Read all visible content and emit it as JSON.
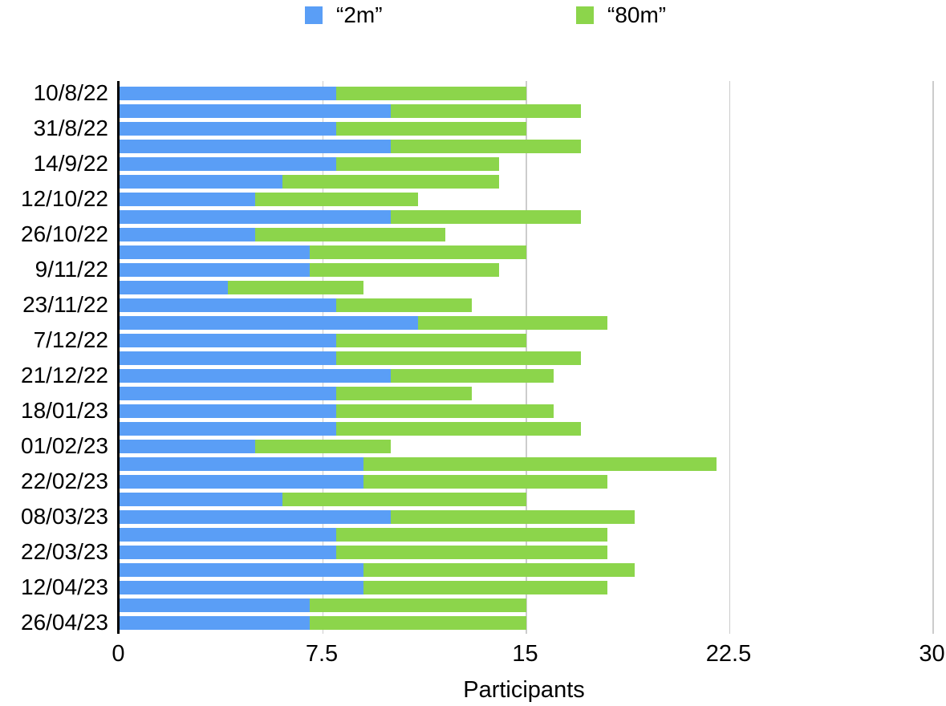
{
  "legend": {
    "items": [
      {
        "label": "“2m”",
        "color": "#5A9EF6"
      },
      {
        "label": "“80m”",
        "color": "#8CD54B"
      }
    ]
  },
  "chart_data": {
    "type": "bar",
    "orientation": "horizontal",
    "stacked": true,
    "title": "",
    "xlabel": "Participants",
    "ylabel": "",
    "xlim": [
      0,
      30
    ],
    "xticks": [
      {
        "label": "0",
        "value": 0
      },
      {
        "label": "7.5",
        "value": 7.5
      },
      {
        "label": "15",
        "value": 15
      },
      {
        "label": "22.5",
        "value": 22.5
      },
      {
        "label": "30",
        "value": 30
      }
    ],
    "grid": true,
    "legend_position": "top",
    "categories": [
      "10/8/22",
      "",
      "31/8/22",
      "",
      "14/9/22",
      "",
      "12/10/22",
      "",
      "26/10/22",
      "",
      "9/11/22",
      "",
      "23/11/22",
      "",
      "7/12/22",
      "",
      "21/12/22",
      "",
      "18/01/23",
      "",
      "01/02/23",
      "",
      "22/02/23",
      "",
      "08/03/23",
      "",
      "22/03/23",
      "",
      "12/04/23",
      "",
      "26/04/23"
    ],
    "series": [
      {
        "name": "“2m”",
        "color": "#5A9EF6",
        "values": [
          8,
          10,
          8,
          10,
          8,
          6,
          5,
          10,
          5,
          7,
          7,
          4,
          8,
          11,
          8,
          8,
          10,
          8,
          8,
          8,
          5,
          9,
          9,
          6,
          10,
          8,
          8,
          9,
          9,
          7,
          7
        ]
      },
      {
        "name": "“80m”",
        "color": "#8CD54B",
        "values": [
          7,
          7,
          7,
          7,
          6,
          8,
          6,
          7,
          7,
          8,
          7,
          5,
          5,
          7,
          7,
          9,
          6,
          5,
          8,
          9,
          5,
          13,
          9,
          9,
          9,
          10,
          10,
          10,
          9,
          8,
          8
        ]
      }
    ],
    "totals": [
      15,
      17,
      15,
      17,
      14,
      14,
      11,
      17,
      12,
      15,
      14,
      9,
      13,
      18,
      15,
      17,
      16,
      13,
      16,
      17,
      10,
      22,
      18,
      15,
      19,
      18,
      18,
      19,
      18,
      15,
      15
    ]
  }
}
